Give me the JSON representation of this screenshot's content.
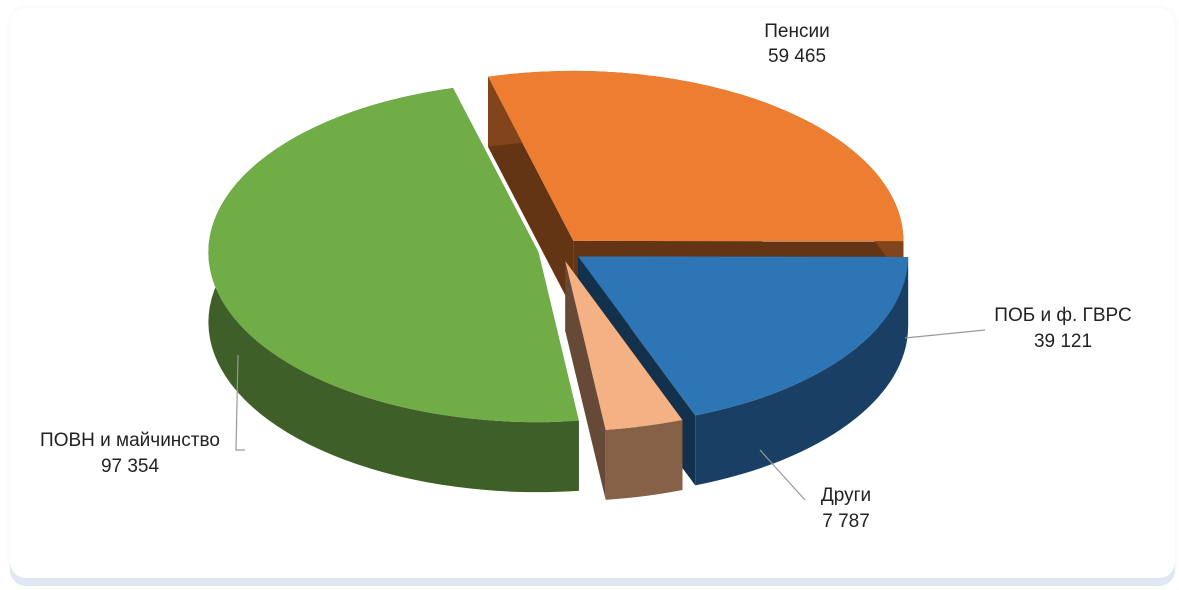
{
  "chart_data": {
    "type": "pie",
    "categories": [
      "Пенсии",
      "ПОБ и ф. ГВРС",
      "Други",
      "ПОВН и майчинство"
    ],
    "values": [
      59465,
      39121,
      7787,
      97354
    ],
    "value_labels": [
      "59 465",
      "39 121",
      "7 787",
      "97 354"
    ],
    "colors": [
      "#ed7d31",
      "#2e75b6",
      "#f4b183",
      "#70ad47"
    ]
  }
}
